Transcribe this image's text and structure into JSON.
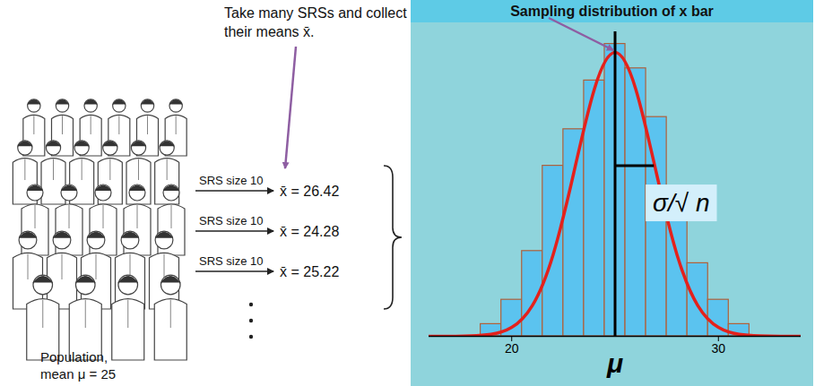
{
  "diagram": {
    "instruction": "Take many SRSs and collect their means x̄.",
    "samples": [
      {
        "label": "SRS size 10",
        "text": "x̄ = 26.42"
      },
      {
        "label": "SRS size 10",
        "text": "x̄ = 24.28"
      },
      {
        "label": "SRS size 10",
        "text": "x̄ = 25.22"
      }
    ],
    "population_label": [
      "Population,",
      "mean μ = 25"
    ]
  },
  "chart_data": {
    "type": "histogram",
    "title": "Sampling distribution of x bar",
    "bins": [
      18.5,
      19.5,
      20.5,
      21.5,
      22.5,
      23.5,
      24.5,
      25.5,
      26.5,
      27.5,
      28.5,
      29.5,
      30.5,
      31.5
    ],
    "counts": [
      1,
      3,
      7,
      14,
      17,
      21,
      24,
      22,
      18,
      11,
      6,
      3,
      1
    ],
    "color": "#5bc3ef",
    "curve": {
      "x": [
        16,
        17,
        18,
        19,
        20,
        21,
        22,
        23,
        24,
        25,
        26,
        27,
        28,
        29,
        30,
        31,
        32,
        33,
        34
      ],
      "values": [
        0,
        0,
        0.03,
        0.16,
        0.73,
        2.53,
        6.68,
        13.4,
        20.3,
        23.3,
        20.3,
        13.4,
        6.68,
        2.53,
        0.73,
        0.16,
        0.03,
        0,
        0
      ],
      "color": "#e4211c"
    },
    "mean_line": {
      "x": 25,
      "label": "μ"
    },
    "spread": {
      "from": 25,
      "to": 26.9,
      "y": 14,
      "label": "σ/√ n"
    },
    "xlim": [
      16,
      34
    ],
    "xticks": [
      20,
      30
    ],
    "ylim": [
      0,
      25
    ],
    "tick_labels": "x"
  }
}
